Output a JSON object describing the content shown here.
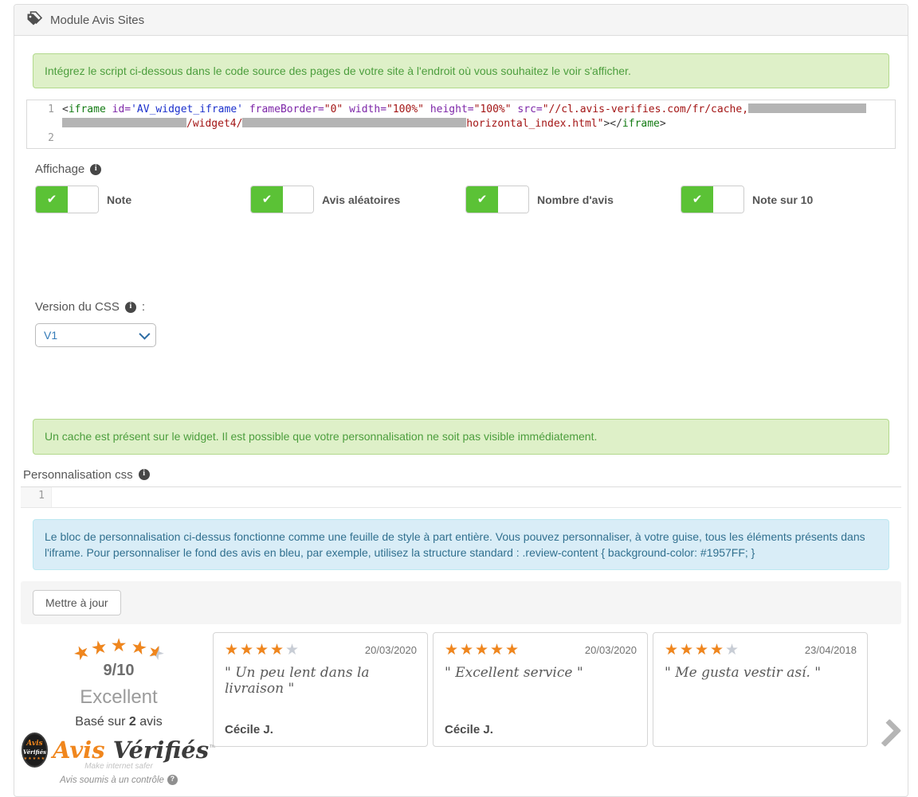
{
  "header": {
    "title": "Module Avis Sites"
  },
  "alerts": {
    "script_info": "Intégrez le script ci-dessous dans le code source des pages de votre site à l'endroit où vous souhaitez le voir s'afficher.",
    "cache_warning": "Un cache est présent sur le widget. Il est possible que votre personnalisation ne soit pas visible immédiatement.",
    "customization_info": "Le bloc de personnalisation ci-dessus fonctionne comme une feuille de style à part entière. Vous pouvez personnaliser, à votre guise, tous les éléments présents dans l'iframe. Pour personnaliser le fond des avis en bleu, par exemple, utilisez la structure standard : .review-content { background-color: #1957FF; }"
  },
  "code_editor": {
    "rows": [
      {
        "num": "1",
        "tokens": [
          {
            "t": "punc",
            "x": "<"
          },
          {
            "t": "tag",
            "x": "iframe"
          },
          {
            "t": "plain",
            "x": " "
          },
          {
            "t": "attr",
            "x": "id="
          },
          {
            "t": "str1",
            "x": "'AV_widget_iframe'"
          },
          {
            "t": "plain",
            "x": " "
          },
          {
            "t": "attr",
            "x": "frameBorder="
          },
          {
            "t": "str2",
            "x": "\"0\""
          },
          {
            "t": "plain",
            "x": " "
          },
          {
            "t": "attr",
            "x": "width="
          },
          {
            "t": "str2",
            "x": "\"100%\""
          },
          {
            "t": "plain",
            "x": " "
          },
          {
            "t": "attr",
            "x": "height="
          },
          {
            "t": "str2",
            "x": "\"100%\""
          },
          {
            "t": "plain",
            "x": " "
          },
          {
            "t": "attr",
            "x": "src="
          },
          {
            "t": "str2",
            "x": "\"//cl.avis-verifies.com/fr/cache,"
          },
          {
            "t": "redact",
            "ch": 19
          }
        ]
      },
      {
        "num": "",
        "tokens": [
          {
            "t": "redact",
            "ch": 20
          },
          {
            "t": "str2",
            "x": "/widget4/"
          },
          {
            "t": "redact",
            "ch": 36
          },
          {
            "t": "str2",
            "x": "horizontal_index.html\""
          },
          {
            "t": "punc",
            "x": "></"
          },
          {
            "t": "tag",
            "x": "iframe"
          },
          {
            "t": "punc",
            "x": ">"
          }
        ]
      },
      {
        "num": "2",
        "tokens": []
      }
    ]
  },
  "display": {
    "label": "Affichage",
    "toggles": [
      {
        "label": "Note",
        "on": true
      },
      {
        "label": "Avis aléatoires",
        "on": true
      },
      {
        "label": "Nombre d'avis",
        "on": true
      },
      {
        "label": "Note sur 10",
        "on": true
      }
    ]
  },
  "css_version": {
    "label": "Version du CSS",
    "colon": ":",
    "selected": "V1"
  },
  "customization": {
    "label": "Personnalisation css",
    "line_number": "1",
    "value": ""
  },
  "footer": {
    "update_button": "Mettre à jour"
  },
  "widget": {
    "summary": {
      "rating": 4.5,
      "score": "9/10",
      "grade": "Excellent",
      "based_on_prefix": "Basé sur",
      "based_on_count": "2",
      "based_on_suffix": "avis",
      "badge_line1": "Avis",
      "badge_line2": "Vérifiés",
      "badge_stars": "★★★★★",
      "brand_first": "Avis",
      "brand_second": "Vérifiés",
      "brand_tm": "™",
      "brand_tagline": "Make internet safer",
      "control_note": "Avis soumis à un contrôle"
    },
    "reviews": [
      {
        "rating": 4,
        "date": "20/03/2020",
        "text": "\" Un peu lent dans la livraison \"",
        "author": "Cécile J."
      },
      {
        "rating": 5,
        "date": "20/03/2020",
        "text": "\" Excellent service \"",
        "author": "Cécile J."
      },
      {
        "rating": 4,
        "date": "23/04/2018",
        "text": "\" Me gusta vestir así. \"",
        "author": ""
      }
    ]
  },
  "colors": {
    "toggle_green": "#5bc236",
    "star_orange": "#f0861d",
    "star_gray": "#c8cdd5",
    "accent_blue": "#337ab7"
  }
}
